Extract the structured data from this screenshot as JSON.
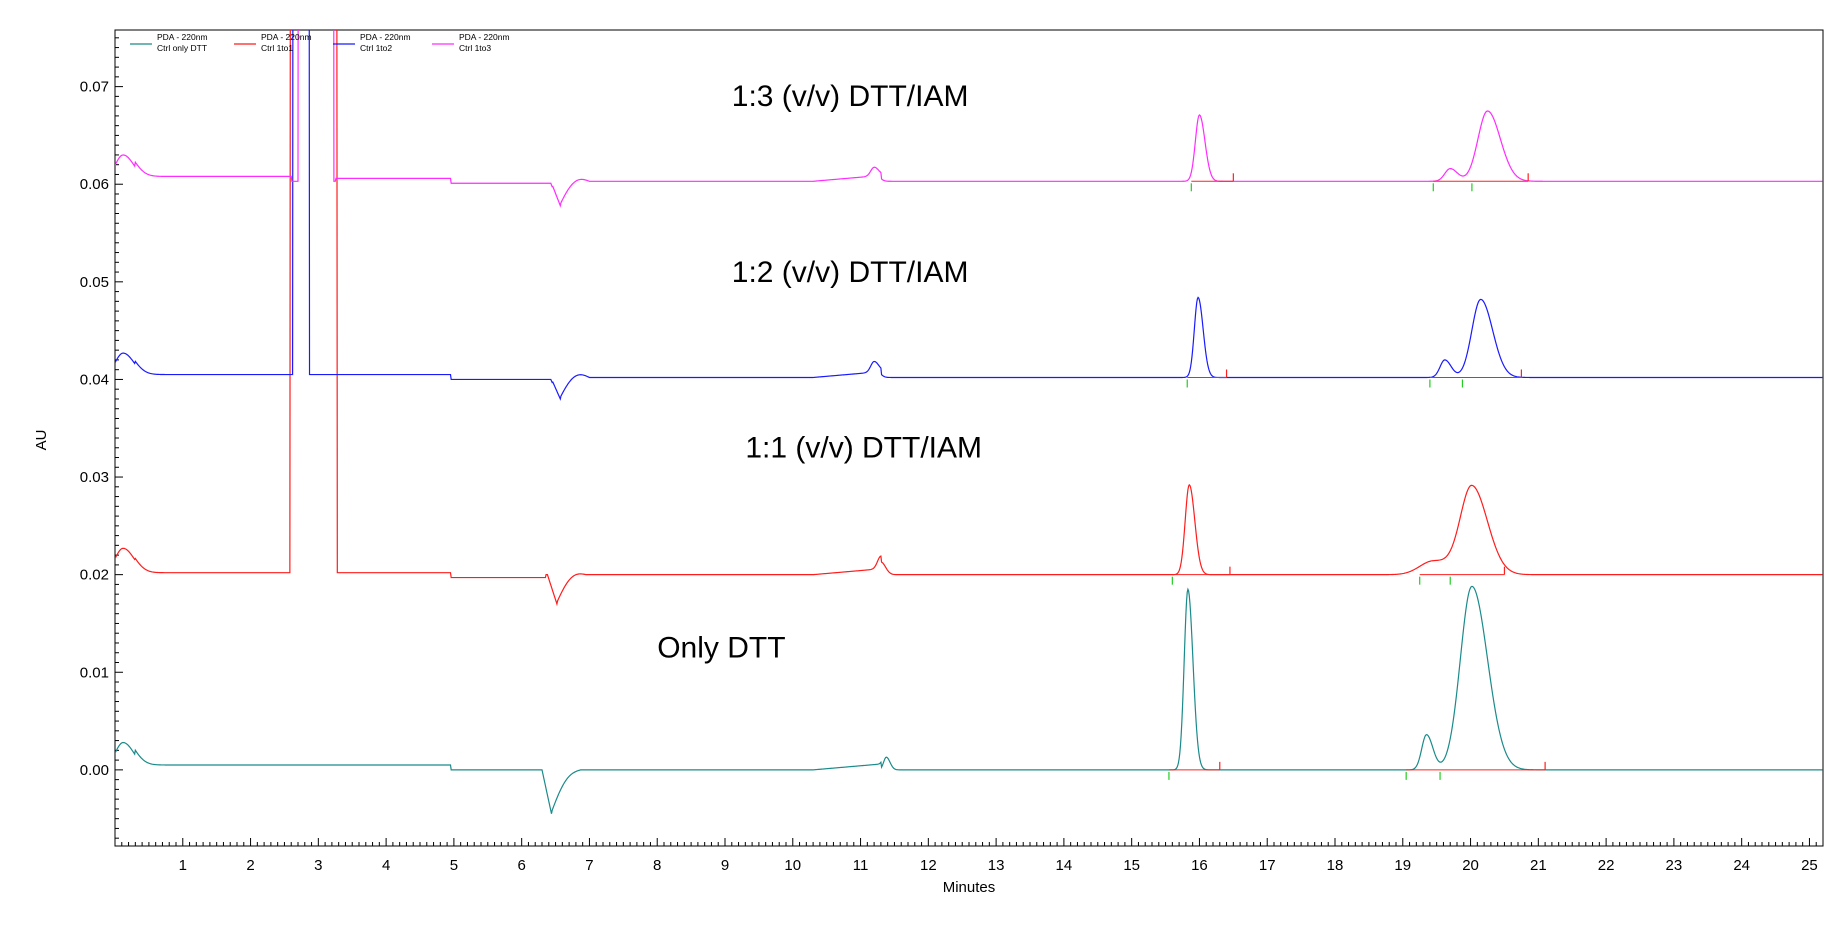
{
  "chart_data": {
    "type": "line",
    "xlabel": "Minutes",
    "ylabel": "AU",
    "xlim": [
      0,
      25.2
    ],
    "ylim": [
      -0.0078,
      0.0758
    ],
    "xticks": [
      1,
      2,
      3,
      4,
      5,
      6,
      7,
      8,
      9,
      10,
      11,
      12,
      13,
      14,
      15,
      16,
      17,
      18,
      19,
      20,
      21,
      22,
      23,
      24,
      25
    ],
    "yticks": [
      0.0,
      0.01,
      0.02,
      0.03,
      0.04,
      0.05,
      0.06,
      0.07
    ],
    "ytick_labels": [
      "0.00",
      "0.01",
      "0.02",
      "0.03",
      "0.04",
      "0.05",
      "0.06",
      "0.07"
    ],
    "legend_position": "top-left",
    "legend": [
      {
        "line1": "PDA - 220nm",
        "line2": "Ctrl only DTT",
        "color": "#1b8a8a"
      },
      {
        "line1": "PDA - 220nm",
        "line2": "Ctrl 1to1",
        "color": "#ff1c1c"
      },
      {
        "line1": "PDA - 220nm",
        "line2": "Ctrl 1to2",
        "color": "#1a1aff"
      },
      {
        "line1": "PDA - 220nm",
        "line2": "Ctrl 1to3",
        "color": "#ff2cff"
      }
    ],
    "annotations": [
      {
        "text": "1:3 (v/v) DTT/IAM",
        "x": 9.1,
        "y": 0.068
      },
      {
        "text": "1:2 (v/v) DTT/IAM",
        "x": 9.1,
        "y": 0.05
      },
      {
        "text": "1:1 (v/v) DTT/IAM",
        "x": 9.3,
        "y": 0.032
      },
      {
        "text": "Only DTT",
        "x": 8.0,
        "y": 0.0115
      }
    ],
    "series": [
      {
        "name": "Ctrl only DTT",
        "color": "#1b8a8a",
        "baseline": 0.0,
        "spike_max": 0.0,
        "peaks": [
          {
            "t": 0.12,
            "h": 0.0028,
            "w": 0.12
          },
          {
            "t": 15.83,
            "h": 0.0185,
            "w": 0.055
          },
          {
            "t": 19.35,
            "h": 0.0036,
            "w": 0.07
          },
          {
            "t": 20.02,
            "h": 0.0188,
            "w": 0.17
          },
          {
            "t": 11.38,
            "h": 0.0013,
            "w": 0.04
          }
        ],
        "segments": [
          [
            0.3,
            4.95,
            0.0005
          ],
          [
            4.95,
            6.3,
            0.0
          ]
        ],
        "dip": {
          "t": 6.42,
          "h": -0.0045
        },
        "markers": [
          {
            "t": 15.55,
            "c": "#22cc22"
          },
          {
            "t": 16.3,
            "c": "#ff2020"
          },
          {
            "t": 19.05,
            "c": "#22cc22"
          },
          {
            "t": 19.55,
            "c": "#22cc22"
          },
          {
            "t": 21.1,
            "c": "#ff2020"
          }
        ]
      },
      {
        "name": "Ctrl 1to1",
        "color": "#ff1c1c",
        "baseline": 0.02,
        "spike_max": 0.09,
        "peaks": [
          {
            "t": 0.12,
            "h": 0.0027,
            "w": 0.12
          },
          {
            "t": 15.85,
            "h": 0.0092,
            "w": 0.06
          },
          {
            "t": 19.45,
            "h": 0.0014,
            "w": 0.2
          },
          {
            "t": 20.02,
            "h": 0.009,
            "w": 0.17
          },
          {
            "t": 11.3,
            "h": 0.0013,
            "w": 0.05
          }
        ],
        "segments": [
          [
            0.3,
            4.95,
            0.0002
          ],
          [
            4.95,
            6.35,
            -0.0003
          ]
        ],
        "dip": {
          "t": 6.5,
          "h": -0.003
        },
        "markers": [
          {
            "t": 15.6,
            "c": "#22cc22"
          },
          {
            "t": 16.45,
            "c": "#ff2020"
          },
          {
            "t": 19.25,
            "c": "#22cc22"
          },
          {
            "t": 19.7,
            "c": "#22cc22"
          },
          {
            "t": 20.5,
            "c": "#ff2020"
          }
        ]
      },
      {
        "name": "Ctrl 1to2",
        "color": "#1a1aff",
        "baseline": 0.0402,
        "spike_max": 0.09,
        "peaks": [
          {
            "t": 0.12,
            "h": 0.0025,
            "w": 0.12
          },
          {
            "t": 15.98,
            "h": 0.0082,
            "w": 0.055
          },
          {
            "t": 19.62,
            "h": 0.0018,
            "w": 0.07
          },
          {
            "t": 20.15,
            "h": 0.008,
            "w": 0.13
          },
          {
            "t": 11.2,
            "h": 0.0011,
            "w": 0.05
          }
        ],
        "segments": [
          [
            0.3,
            4.95,
            0.0003
          ],
          [
            4.95,
            6.45,
            -0.0002
          ]
        ],
        "dip": {
          "t": 6.55,
          "h": -0.0022
        },
        "markers": [
          {
            "t": 15.82,
            "c": "#22cc22"
          },
          {
            "t": 16.4,
            "c": "#ff2020"
          },
          {
            "t": 19.4,
            "c": "#22cc22"
          },
          {
            "t": 19.88,
            "c": "#22cc22"
          },
          {
            "t": 20.75,
            "c": "#ff2020"
          }
        ]
      },
      {
        "name": "Ctrl 1to3",
        "color": "#ff2cff",
        "baseline": 0.0603,
        "spike_max": 0.0,
        "peaks": [
          {
            "t": 0.12,
            "h": 0.0027,
            "w": 0.12
          },
          {
            "t": 16.0,
            "h": 0.0068,
            "w": 0.06
          },
          {
            "t": 19.7,
            "h": 0.0013,
            "w": 0.08
          },
          {
            "t": 20.25,
            "h": 0.0072,
            "w": 0.14
          },
          {
            "t": 11.2,
            "h": 0.0009,
            "w": 0.05
          }
        ],
        "segments": [
          [
            0.3,
            2.6,
            0.0005
          ],
          [
            2.6,
            3.25,
            0.0
          ],
          [
            3.25,
            4.95,
            0.0003
          ],
          [
            4.95,
            6.45,
            -0.0002
          ]
        ],
        "dip": {
          "t": 6.55,
          "h": -0.0025
        },
        "markers": [
          {
            "t": 15.88,
            "c": "#22cc22"
          },
          {
            "t": 16.5,
            "c": "#ff2020"
          },
          {
            "t": 19.45,
            "c": "#22cc22"
          },
          {
            "t": 20.02,
            "c": "#22cc22"
          },
          {
            "t": 20.85,
            "c": "#ff2020"
          }
        ]
      }
    ],
    "tall_peaks": [
      {
        "series": "Ctrl 1to1",
        "t_start": 2.58,
        "t_end": 3.27
      },
      {
        "series": "Ctrl 1to2",
        "t_start": 2.62,
        "t_end": 2.86
      },
      {
        "series": "Ctrl 1to3",
        "t_start": 2.7,
        "t_end": 3.22
      }
    ]
  }
}
